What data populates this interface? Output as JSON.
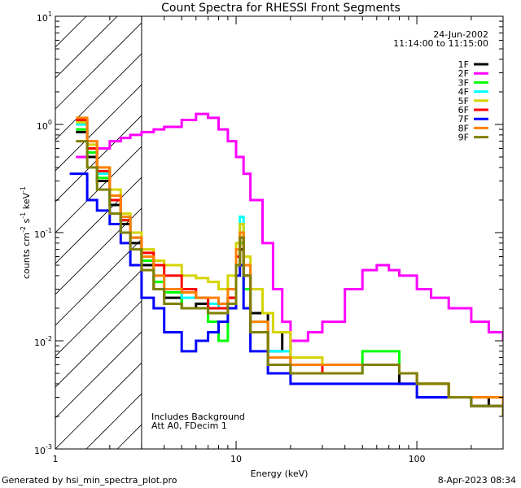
{
  "chart_data": {
    "type": "line",
    "title": "Count Spectra for RHESSI Front Segments",
    "xlabel": "Energy (keV)",
    "ylabel_parts": [
      "counts cm",
      "-2",
      " s",
      "-1",
      " keV",
      "-1"
    ],
    "xscale": "log",
    "yscale": "log",
    "xlim": [
      1,
      300
    ],
    "ylim": [
      0.001,
      10
    ],
    "x_tick_labels": [
      "1",
      "10",
      "100"
    ],
    "y_tick_labels": [
      {
        "base": "10",
        "exp": "1"
      },
      {
        "base": "10",
        "exp": "0"
      },
      {
        "base": "10",
        "exp": "-1"
      },
      {
        "base": "10",
        "exp": "-2"
      },
      {
        "base": "10",
        "exp": "-3"
      }
    ],
    "date": "24-Jun-2002",
    "time_range": "11:14:00 to 11:15:00",
    "annotations": [
      "Includes Background",
      "Att A0, FDecim 1"
    ],
    "hatched_region_below_keV": 3,
    "legend_position": "top-right",
    "series": [
      {
        "name": "1F",
        "color": "#000000",
        "points": [
          [
            1.3,
            0.85
          ],
          [
            1.5,
            0.5
          ],
          [
            1.7,
            0.3
          ],
          [
            2.0,
            0.18
          ],
          [
            2.3,
            0.12
          ],
          [
            2.6,
            0.08
          ],
          [
            3.0,
            0.05
          ],
          [
            3.5,
            0.03
          ],
          [
            4.0,
            0.025
          ],
          [
            5.0,
            0.02
          ],
          [
            6.0,
            0.022
          ],
          [
            7.0,
            0.02
          ],
          [
            8.0,
            0.02
          ],
          [
            9.0,
            0.025
          ],
          [
            10.0,
            0.05
          ],
          [
            10.5,
            0.07
          ],
          [
            11.0,
            0.04
          ],
          [
            12.0,
            0.018
          ],
          [
            15.0,
            0.008
          ],
          [
            18.0,
            0.012
          ],
          [
            20.0,
            0.006
          ],
          [
            30.0,
            0.006
          ],
          [
            50.0,
            0.006
          ],
          [
            80.0,
            0.004
          ],
          [
            100.0,
            0.004
          ],
          [
            150.0,
            0.003
          ],
          [
            200.0,
            0.003
          ],
          [
            250.0,
            0.0025
          ],
          [
            300.0,
            0.002
          ]
        ]
      },
      {
        "name": "2F",
        "color": "#ff00ff",
        "points": [
          [
            1.3,
            0.5
          ],
          [
            1.5,
            0.55
          ],
          [
            1.7,
            0.6
          ],
          [
            2.0,
            0.7
          ],
          [
            2.3,
            0.75
          ],
          [
            2.6,
            0.8
          ],
          [
            3.0,
            0.85
          ],
          [
            3.5,
            0.9
          ],
          [
            4.0,
            0.95
          ],
          [
            5.0,
            1.1
          ],
          [
            6.0,
            1.25
          ],
          [
            7.0,
            1.15
          ],
          [
            8.0,
            0.9
          ],
          [
            9.0,
            0.7
          ],
          [
            10.0,
            0.5
          ],
          [
            11.0,
            0.35
          ],
          [
            12.0,
            0.2
          ],
          [
            14.0,
            0.08
          ],
          [
            16.0,
            0.03
          ],
          [
            18.0,
            0.015
          ],
          [
            20.0,
            0.01
          ],
          [
            25.0,
            0.012
          ],
          [
            30.0,
            0.015
          ],
          [
            40.0,
            0.03
          ],
          [
            50.0,
            0.045
          ],
          [
            60.0,
            0.05
          ],
          [
            70.0,
            0.045
          ],
          [
            80.0,
            0.04
          ],
          [
            100.0,
            0.03
          ],
          [
            120.0,
            0.025
          ],
          [
            150.0,
            0.02
          ],
          [
            200.0,
            0.015
          ],
          [
            250.0,
            0.012
          ],
          [
            300.0,
            0.01
          ]
        ]
      },
      {
        "name": "3F",
        "color": "#00ff00",
        "points": [
          [
            1.3,
            0.9
          ],
          [
            1.5,
            0.55
          ],
          [
            1.7,
            0.32
          ],
          [
            2.0,
            0.2
          ],
          [
            2.3,
            0.13
          ],
          [
            2.6,
            0.09
          ],
          [
            3.0,
            0.055
          ],
          [
            3.5,
            0.035
          ],
          [
            4.0,
            0.028
          ],
          [
            5.0,
            0.02
          ],
          [
            6.0,
            0.02
          ],
          [
            7.0,
            0.015
          ],
          [
            8.0,
            0.01
          ],
          [
            9.0,
            0.02
          ],
          [
            10.0,
            0.06
          ],
          [
            10.5,
            0.08
          ],
          [
            11.0,
            0.03
          ],
          [
            12.0,
            0.012
          ],
          [
            15.0,
            0.006
          ],
          [
            20.0,
            0.005
          ],
          [
            30.0,
            0.006
          ],
          [
            50.0,
            0.008
          ],
          [
            80.0,
            0.005
          ],
          [
            100.0,
            0.004
          ],
          [
            150.0,
            0.003
          ],
          [
            200.0,
            0.0025
          ],
          [
            300.0,
            0.002
          ]
        ]
      },
      {
        "name": "4F",
        "color": "#00ffff",
        "points": [
          [
            1.3,
            1.0
          ],
          [
            1.5,
            0.6
          ],
          [
            1.7,
            0.35
          ],
          [
            2.0,
            0.2
          ],
          [
            2.3,
            0.14
          ],
          [
            2.6,
            0.09
          ],
          [
            3.0,
            0.06
          ],
          [
            3.5,
            0.04
          ],
          [
            4.0,
            0.03
          ],
          [
            5.0,
            0.025
          ],
          [
            6.0,
            0.025
          ],
          [
            7.0,
            0.022
          ],
          [
            8.0,
            0.02
          ],
          [
            9.0,
            0.03
          ],
          [
            10.0,
            0.08
          ],
          [
            10.5,
            0.14
          ],
          [
            11.0,
            0.05
          ],
          [
            12.0,
            0.015
          ],
          [
            15.0,
            0.008
          ],
          [
            20.0,
            0.006
          ],
          [
            30.0,
            0.005
          ],
          [
            50.0,
            0.006
          ],
          [
            80.0,
            0.005
          ],
          [
            100.0,
            0.004
          ],
          [
            150.0,
            0.003
          ],
          [
            200.0,
            0.0025
          ],
          [
            300.0,
            0.002
          ]
        ]
      },
      {
        "name": "5F",
        "color": "#d4d400",
        "points": [
          [
            1.3,
            1.05
          ],
          [
            1.5,
            0.65
          ],
          [
            1.7,
            0.4
          ],
          [
            2.0,
            0.25
          ],
          [
            2.3,
            0.15
          ],
          [
            2.6,
            0.1
          ],
          [
            3.0,
            0.07
          ],
          [
            3.5,
            0.055
          ],
          [
            4.0,
            0.05
          ],
          [
            5.0,
            0.04
          ],
          [
            6.0,
            0.038
          ],
          [
            7.0,
            0.035
          ],
          [
            8.0,
            0.03
          ],
          [
            9.0,
            0.04
          ],
          [
            10.0,
            0.08
          ],
          [
            10.5,
            0.12
          ],
          [
            11.0,
            0.06
          ],
          [
            12.0,
            0.03
          ],
          [
            14.0,
            0.018
          ],
          [
            16.0,
            0.012
          ],
          [
            20.0,
            0.007
          ],
          [
            30.0,
            0.006
          ],
          [
            50.0,
            0.006
          ],
          [
            80.0,
            0.005
          ],
          [
            100.0,
            0.004
          ],
          [
            150.0,
            0.003
          ],
          [
            200.0,
            0.003
          ],
          [
            300.0,
            0.002
          ]
        ]
      },
      {
        "name": "6F",
        "color": "#ff0000",
        "points": [
          [
            1.3,
            1.1
          ],
          [
            1.5,
            0.6
          ],
          [
            1.7,
            0.37
          ],
          [
            2.0,
            0.2
          ],
          [
            2.3,
            0.13
          ],
          [
            2.6,
            0.09
          ],
          [
            3.0,
            0.065
          ],
          [
            3.5,
            0.05
          ],
          [
            4.0,
            0.04
          ],
          [
            5.0,
            0.03
          ],
          [
            6.0,
            0.025
          ],
          [
            7.0,
            0.02
          ],
          [
            8.0,
            0.02
          ],
          [
            9.0,
            0.025
          ],
          [
            10.0,
            0.06
          ],
          [
            10.5,
            0.09
          ],
          [
            11.0,
            0.04
          ],
          [
            12.0,
            0.012
          ],
          [
            15.0,
            0.006
          ],
          [
            20.0,
            0.005
          ],
          [
            30.0,
            0.006
          ],
          [
            50.0,
            0.006
          ],
          [
            80.0,
            0.005
          ],
          [
            100.0,
            0.004
          ],
          [
            150.0,
            0.003
          ],
          [
            200.0,
            0.0025
          ],
          [
            300.0,
            0.002
          ]
        ]
      },
      {
        "name": "7F",
        "color": "#0000ff",
        "points": [
          [
            1.2,
            0.35
          ],
          [
            1.3,
            0.35
          ],
          [
            1.5,
            0.2
          ],
          [
            1.7,
            0.16
          ],
          [
            2.0,
            0.12
          ],
          [
            2.3,
            0.08
          ],
          [
            2.6,
            0.05
          ],
          [
            3.0,
            0.025
          ],
          [
            3.5,
            0.02
          ],
          [
            4.0,
            0.012
          ],
          [
            5.0,
            0.008
          ],
          [
            6.0,
            0.01
          ],
          [
            7.0,
            0.012
          ],
          [
            8.0,
            0.015
          ],
          [
            9.0,
            0.02
          ],
          [
            10.0,
            0.04
          ],
          [
            10.5,
            0.05
          ],
          [
            11.0,
            0.02
          ],
          [
            12.0,
            0.008
          ],
          [
            15.0,
            0.005
          ],
          [
            20.0,
            0.004
          ],
          [
            30.0,
            0.004
          ],
          [
            50.0,
            0.004
          ],
          [
            80.0,
            0.004
          ],
          [
            100.0,
            0.003
          ],
          [
            150.0,
            0.003
          ],
          [
            200.0,
            0.0025
          ],
          [
            300.0,
            0.002
          ]
        ]
      },
      {
        "name": "8F",
        "color": "#ff8000",
        "points": [
          [
            1.3,
            1.15
          ],
          [
            1.5,
            0.7
          ],
          [
            1.7,
            0.4
          ],
          [
            2.0,
            0.22
          ],
          [
            2.3,
            0.14
          ],
          [
            2.6,
            0.09
          ],
          [
            3.0,
            0.06
          ],
          [
            3.5,
            0.04
          ],
          [
            4.0,
            0.03
          ],
          [
            5.0,
            0.028
          ],
          [
            6.0,
            0.025
          ],
          [
            7.0,
            0.025
          ],
          [
            8.0,
            0.022
          ],
          [
            9.0,
            0.03
          ],
          [
            10.0,
            0.07
          ],
          [
            10.5,
            0.1
          ],
          [
            11.0,
            0.05
          ],
          [
            12.0,
            0.015
          ],
          [
            15.0,
            0.007
          ],
          [
            20.0,
            0.006
          ],
          [
            30.0,
            0.006
          ],
          [
            50.0,
            0.006
          ],
          [
            80.0,
            0.005
          ],
          [
            100.0,
            0.004
          ],
          [
            150.0,
            0.003
          ],
          [
            200.0,
            0.003
          ],
          [
            300.0,
            0.002
          ]
        ]
      },
      {
        "name": "9F",
        "color": "#808000",
        "points": [
          [
            1.3,
            0.7
          ],
          [
            1.5,
            0.4
          ],
          [
            1.7,
            0.25
          ],
          [
            2.0,
            0.15
          ],
          [
            2.3,
            0.1
          ],
          [
            2.6,
            0.07
          ],
          [
            3.0,
            0.045
          ],
          [
            3.5,
            0.03
          ],
          [
            4.0,
            0.022
          ],
          [
            5.0,
            0.02
          ],
          [
            6.0,
            0.02
          ],
          [
            7.0,
            0.018
          ],
          [
            8.0,
            0.018
          ],
          [
            9.0,
            0.022
          ],
          [
            10.0,
            0.05
          ],
          [
            10.5,
            0.09
          ],
          [
            11.0,
            0.04
          ],
          [
            12.0,
            0.012
          ],
          [
            15.0,
            0.006
          ],
          [
            20.0,
            0.005
          ],
          [
            30.0,
            0.005
          ],
          [
            50.0,
            0.006
          ],
          [
            80.0,
            0.005
          ],
          [
            100.0,
            0.004
          ],
          [
            150.0,
            0.003
          ],
          [
            200.0,
            0.0025
          ],
          [
            300.0,
            0.002
          ]
        ]
      }
    ]
  },
  "footer": {
    "generated_by": "Generated by hsi_min_spectra_plot.pro",
    "timestamp": "8-Apr-2023 08:34"
  }
}
